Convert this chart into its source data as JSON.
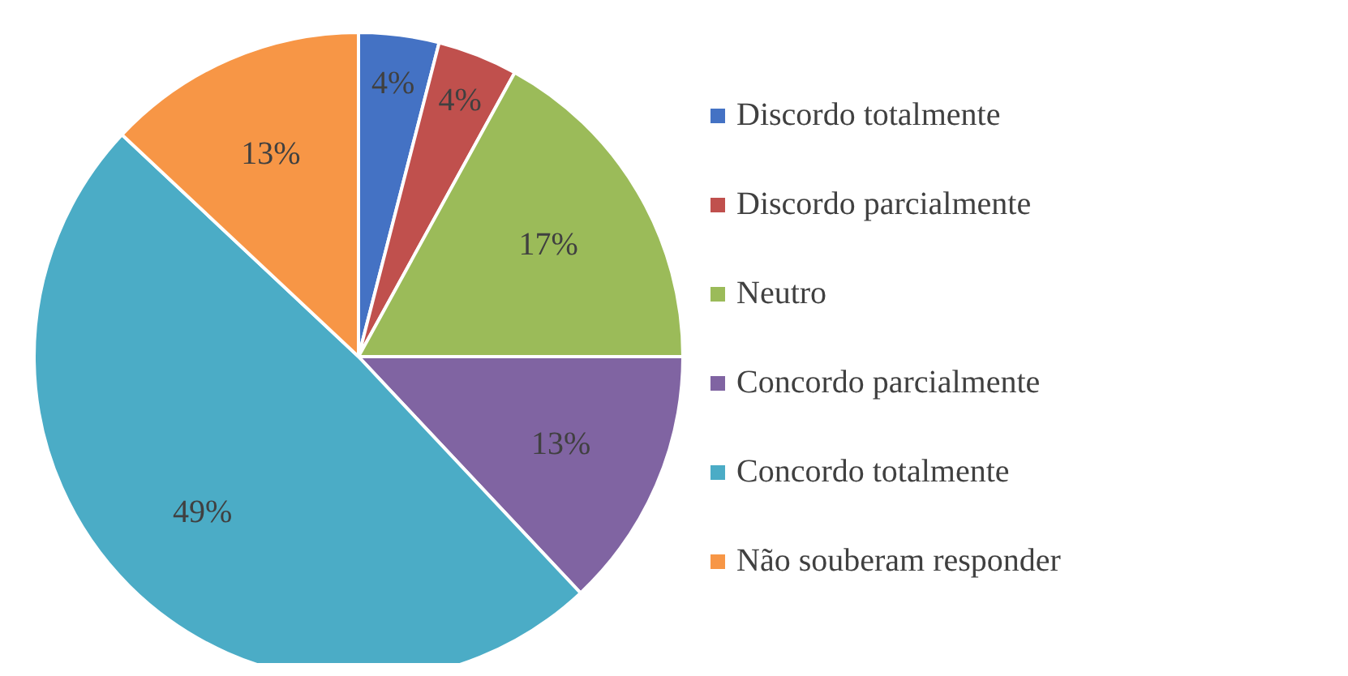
{
  "chart_data": {
    "type": "pie",
    "categories": [
      "Discordo totalmente",
      "Discordo parcialmente",
      "Neutro",
      "Concordo parcialmente",
      "Concordo totalmente",
      "Não souberam responder"
    ],
    "values": [
      4,
      4,
      17,
      13,
      49,
      13
    ],
    "colors": [
      "#4472c4",
      "#c0504d",
      "#9bbb59",
      "#8064a2",
      "#4bacc6",
      "#f79646"
    ],
    "value_labels": [
      "4%",
      "4%",
      "17%",
      "13%",
      "49%",
      "13%"
    ],
    "legend": "right"
  }
}
